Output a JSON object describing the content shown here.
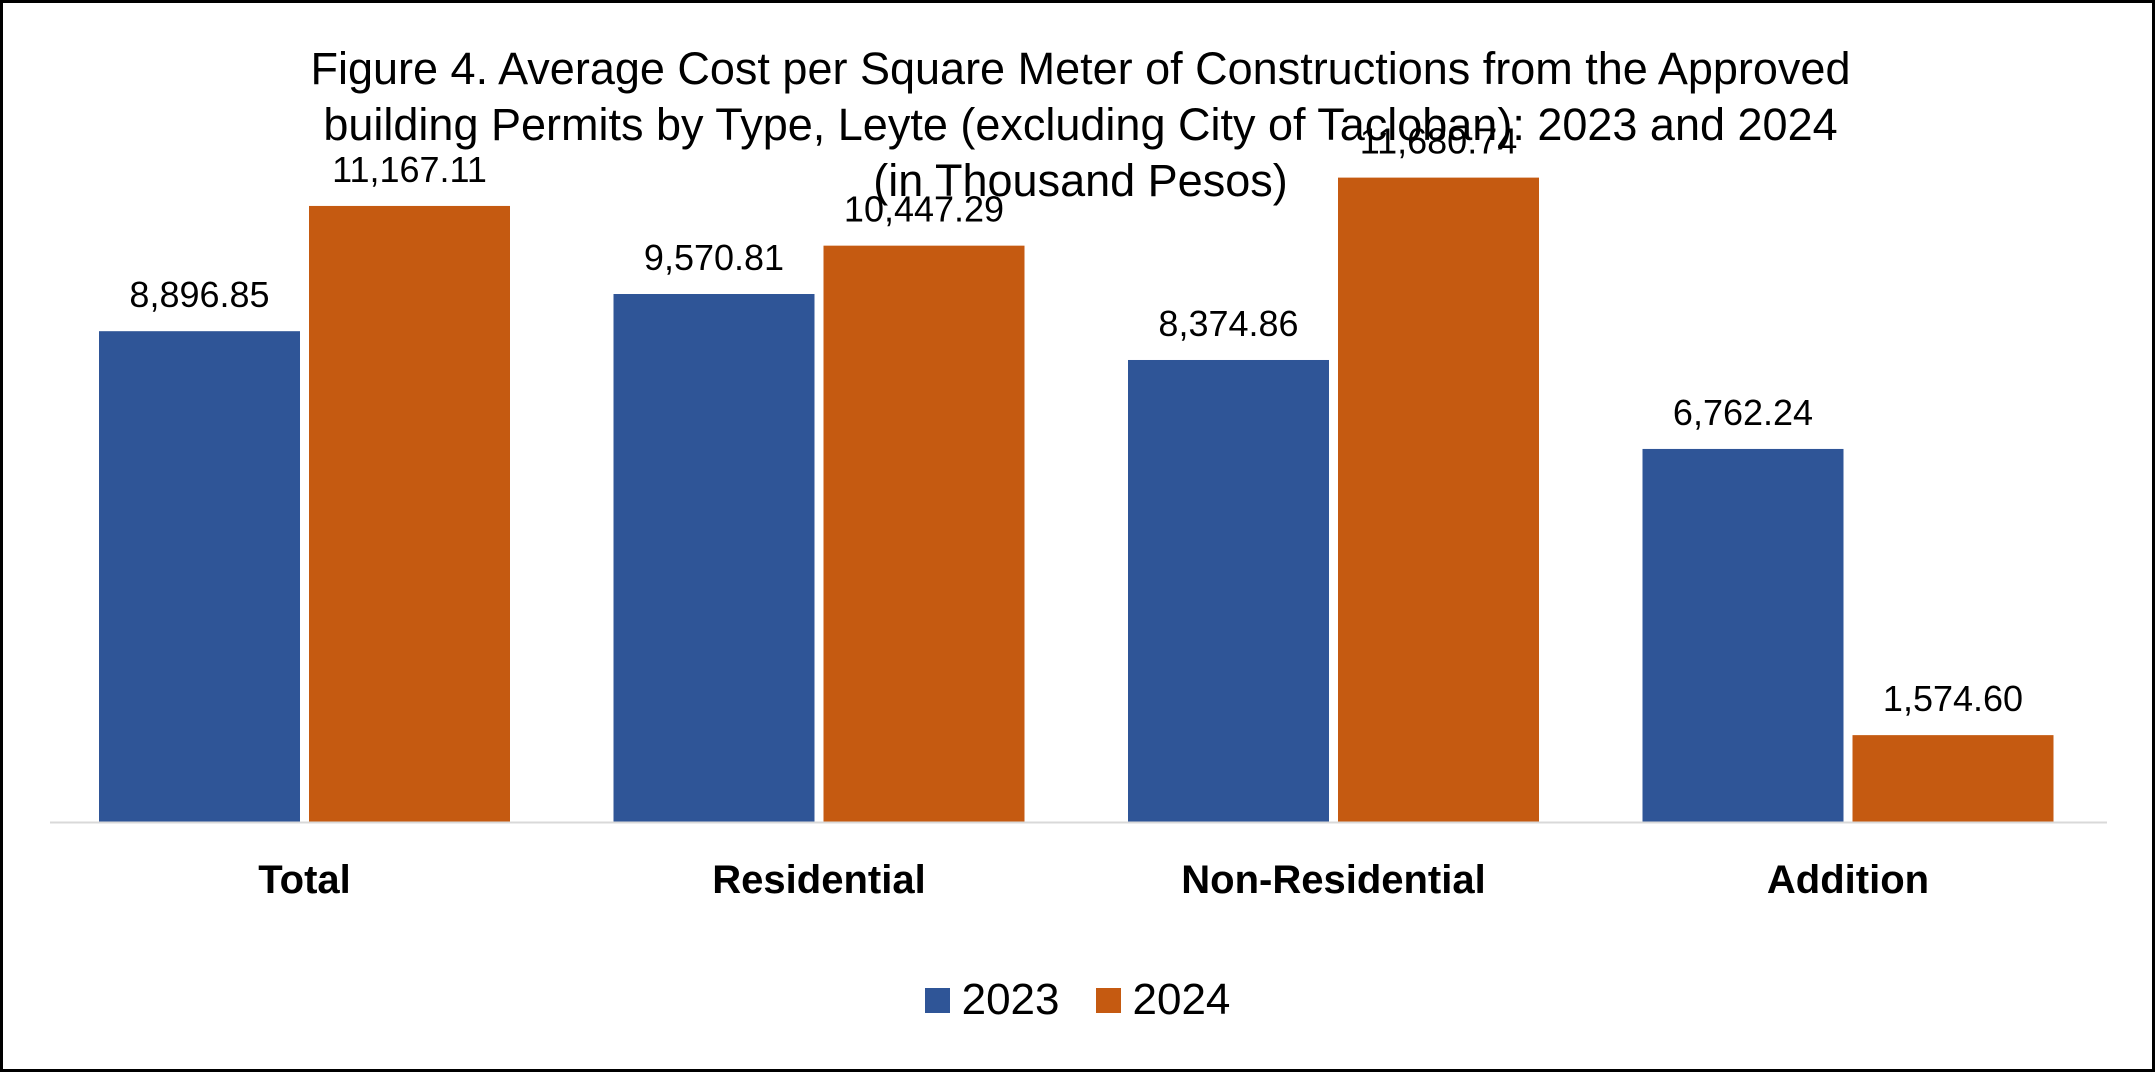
{
  "chart_data": {
    "type": "bar",
    "title_lines": [
      "Figure 4. Average Cost per Square Meter of Constructions from the Approved",
      "building Permits by Type, Leyte (excluding City of Tacloban): 2023 and 2024",
      "(in Thousand Pesos)"
    ],
    "categories": [
      "Total",
      "Residential",
      "Non-Residential",
      "Addition"
    ],
    "series": [
      {
        "name": "2023",
        "color": "#2F5597",
        "values": [
          8896.85,
          9570.81,
          8374.86,
          6762.24
        ],
        "labels": [
          "8,896.85",
          "9,570.81",
          "8,374.86",
          "6,762.24"
        ]
      },
      {
        "name": "2024",
        "color": "#C55A11",
        "values": [
          11167.11,
          10447.29,
          11680.74,
          1574.6
        ],
        "labels": [
          "11,167.11",
          "10,447.29",
          "11,680.74",
          "1,574.60"
        ]
      }
    ],
    "ylim": [
      0,
      12000
    ],
    "grid": false,
    "legend_position": "bottom",
    "data_labels": true
  }
}
